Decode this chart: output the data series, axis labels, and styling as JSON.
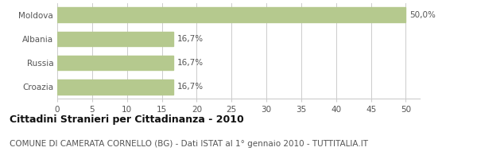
{
  "categories": [
    "Croazia",
    "Russia",
    "Albania",
    "Moldova"
  ],
  "values": [
    16.7,
    16.7,
    16.7,
    50.0
  ],
  "labels": [
    "16,7%",
    "16,7%",
    "16,7%",
    "50,0%"
  ],
  "bar_color": "#b5c98e",
  "bar_edge_color": "#b5c98e",
  "background_color": "#ffffff",
  "xlim": [
    0,
    52
  ],
  "xticks": [
    0,
    5,
    10,
    15,
    20,
    25,
    30,
    35,
    40,
    45,
    50
  ],
  "title": "Cittadini Stranieri per Cittadinanza - 2010",
  "subtitle": "COMUNE DI CAMERATA CORNELLO (BG) - Dati ISTAT al 1° gennaio 2010 - TUTTITALIA.IT",
  "title_fontsize": 9,
  "subtitle_fontsize": 7.5,
  "label_fontsize": 7.5,
  "tick_fontsize": 7.5,
  "ytick_fontsize": 7.5,
  "grid_color": "#cccccc",
  "text_color": "#555555",
  "title_color": "#111111",
  "subtitle_color": "#555555"
}
